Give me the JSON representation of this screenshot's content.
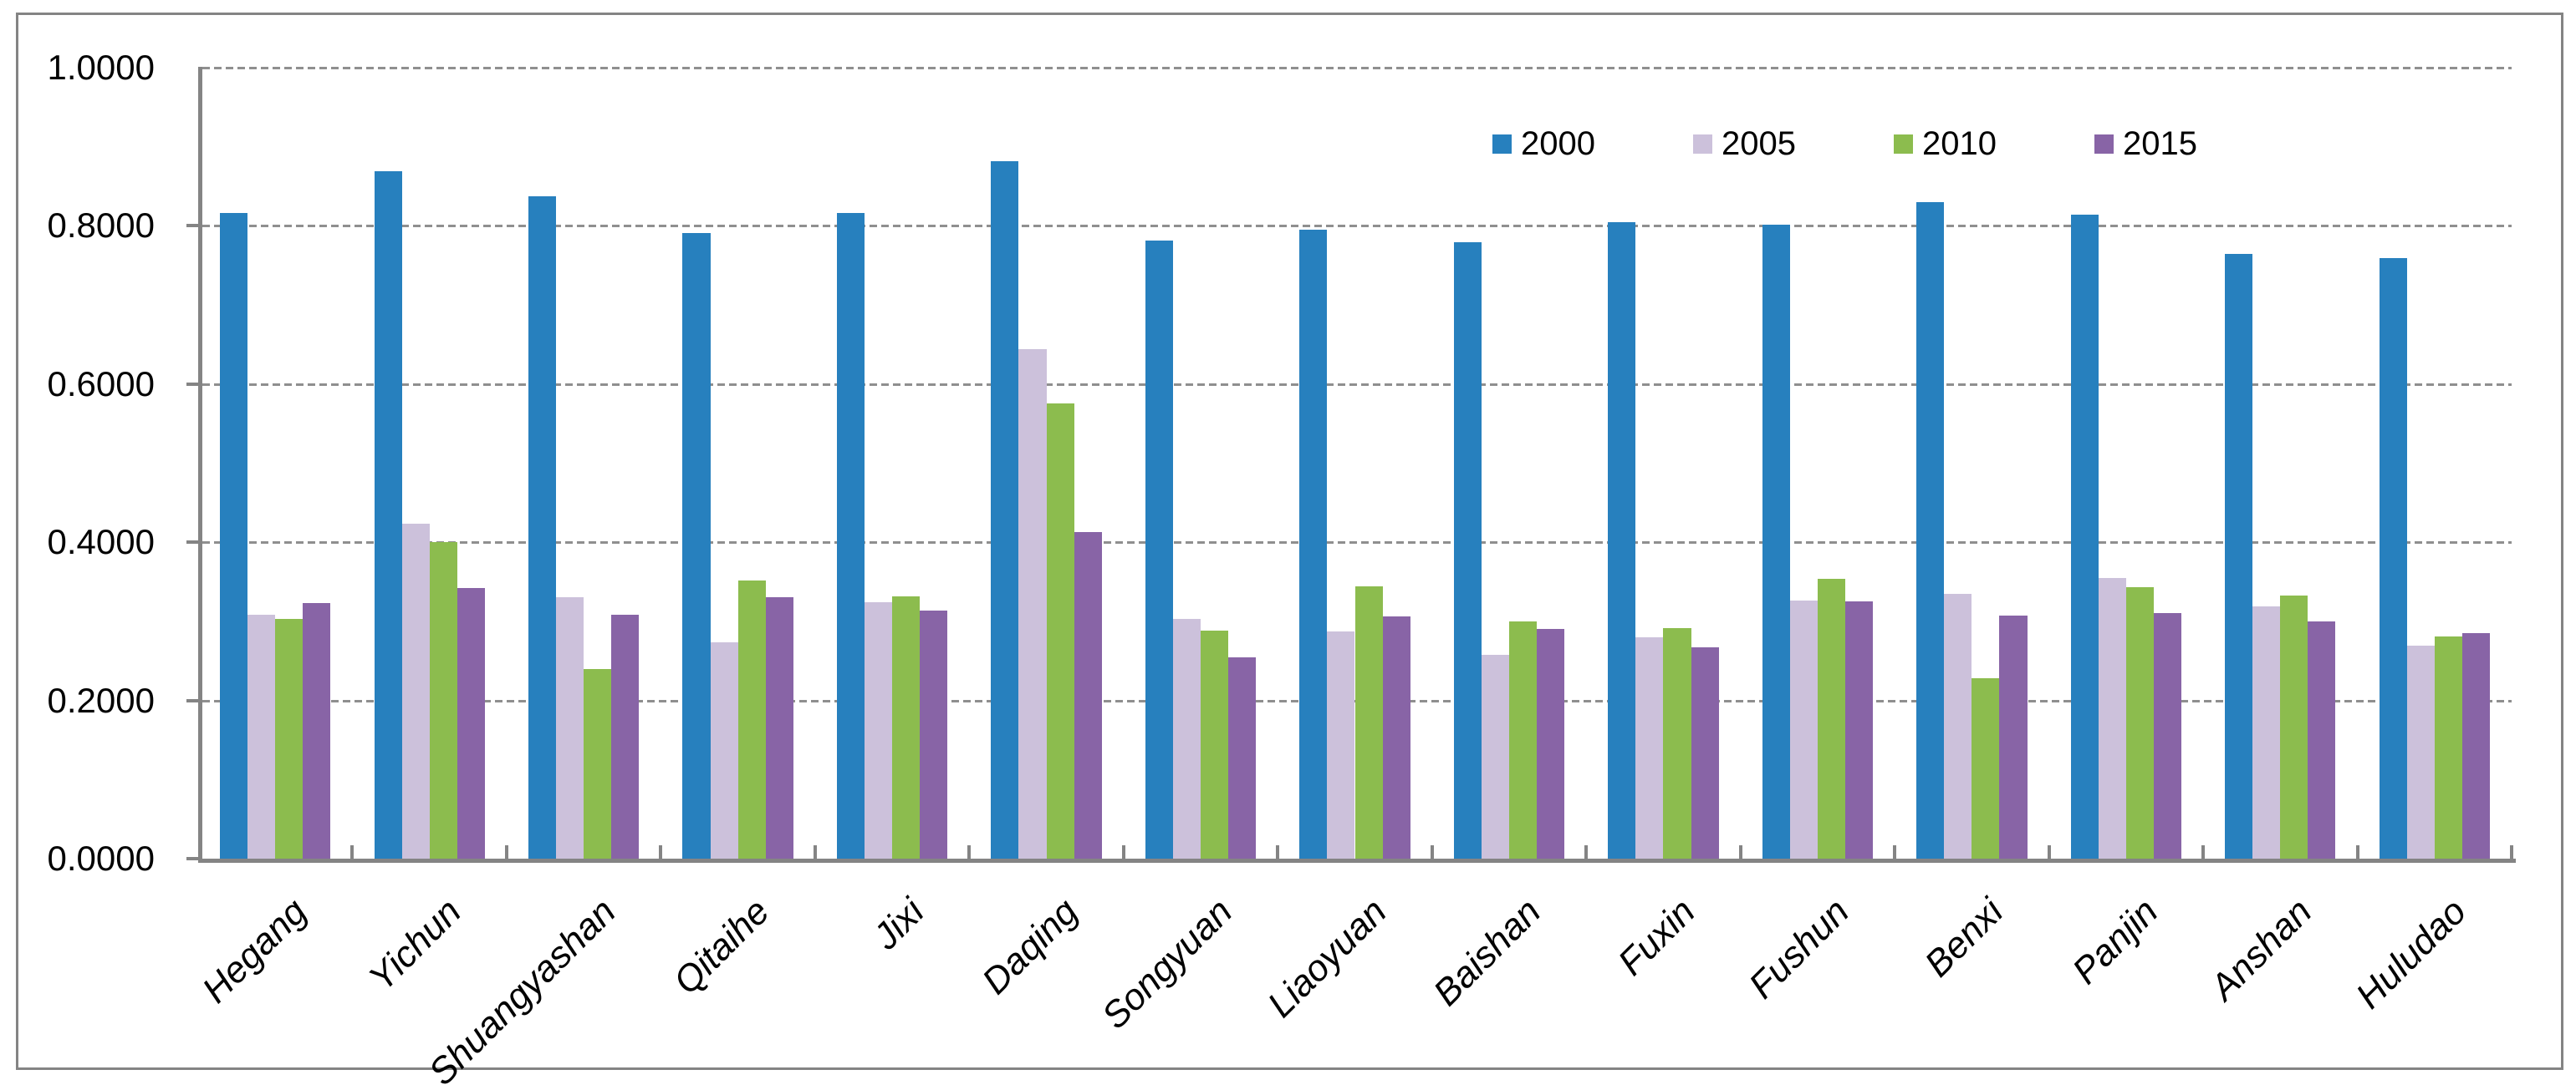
{
  "chart_data": {
    "type": "bar",
    "title": "",
    "categories": [
      "Hegang",
      "Yichun",
      "Shuangyashan",
      "Qitaihe",
      "Jixi",
      "Daqing",
      "Songyuan",
      "Liaoyuan",
      "Baishan",
      "Fuxin",
      "Fushun",
      "Benxi",
      "Panjin",
      "Anshan",
      "Huludao"
    ],
    "series": [
      {
        "name": "2000",
        "color": "#2780BE",
        "values": [
          0.816,
          0.869,
          0.837,
          0.791,
          0.816,
          0.882,
          0.781,
          0.795,
          0.779,
          0.805,
          0.802,
          0.83,
          0.814,
          0.764,
          0.759
        ]
      },
      {
        "name": "2005",
        "color": "#CCC1DB",
        "values": [
          0.308,
          0.423,
          0.33,
          0.273,
          0.324,
          0.644,
          0.303,
          0.287,
          0.258,
          0.28,
          0.326,
          0.335,
          0.355,
          0.319,
          0.269
        ]
      },
      {
        "name": "2010",
        "color": "#8CBC4E",
        "values": [
          0.303,
          0.4,
          0.24,
          0.352,
          0.332,
          0.576,
          0.288,
          0.344,
          0.3,
          0.291,
          0.354,
          0.228,
          0.343,
          0.333,
          0.281
        ]
      },
      {
        "name": "2015",
        "color": "#8864A6",
        "values": [
          0.323,
          0.342,
          0.308,
          0.33,
          0.314,
          0.413,
          0.255,
          0.306,
          0.29,
          0.267,
          0.325,
          0.307,
          0.31,
          0.3,
          0.285
        ]
      }
    ],
    "xlabel": "",
    "ylabel": "",
    "ylim": [
      0,
      1
    ],
    "ytick_step": 0.2,
    "ytick_labels": [
      "0.0000",
      "0.2000",
      "0.4000",
      "0.6000",
      "0.8000",
      "1.0000"
    ],
    "grid": "horizontal-dashed",
    "legend_position": "top-center-inside"
  },
  "colors": {
    "background": "#FFFFFF",
    "axis": "#848484",
    "gridline": "#8F8F8F",
    "frame_border": "#848484",
    "text": "#000000"
  }
}
